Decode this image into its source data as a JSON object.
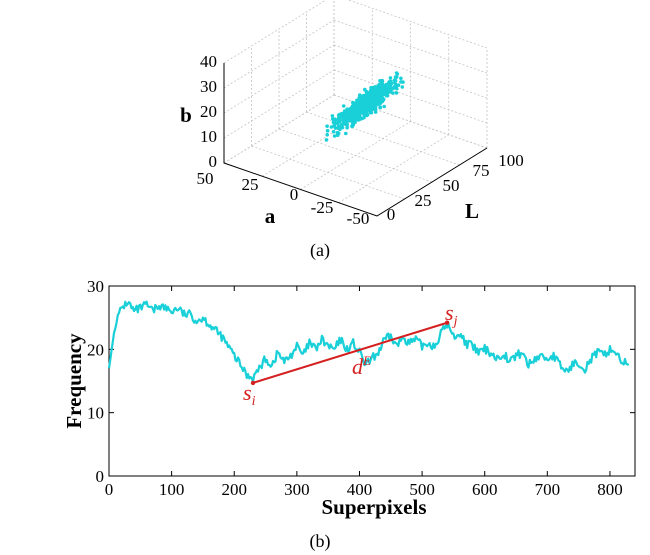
{
  "panel_a": {
    "caption": "(a)",
    "axis_labels": {
      "b": "b",
      "a": "a",
      "L": "L"
    },
    "b_ticks": [
      "0",
      "10",
      "20",
      "30",
      "40"
    ],
    "a_ticks": [
      "50",
      "25",
      "0",
      "-25",
      "-50"
    ],
    "L_ticks": [
      "0",
      "25",
      "50",
      "75",
      "100"
    ],
    "point_color": "#1ad0d8"
  },
  "panel_b": {
    "caption": "(b)",
    "ylabel": "Frequency",
    "xlabel": "Superpixels",
    "x_ticks": [
      "0",
      "100",
      "200",
      "300",
      "400",
      "500",
      "600",
      "700",
      "800"
    ],
    "y_ticks": [
      "0",
      "10",
      "20",
      "30"
    ],
    "annotations": {
      "si_base": "s",
      "si_sub": "i",
      "sj_base": "s",
      "sj_sub": "j",
      "d_base": "d",
      "d_sup": "E"
    },
    "line_color": "#1ad0d8",
    "segment_color": "#d42020"
  },
  "chart_data": [
    {
      "type": "scatter",
      "xlabel": "a",
      "ylabel": "b",
      "zlabel": "L",
      "xlim": [
        -50,
        50
      ],
      "ylim": [
        0,
        40
      ],
      "zlim": [
        0,
        100
      ],
      "grid": true,
      "series": [
        {
          "points_summary": "dense cluster, approx L 30-75, a -20 to 10, b 10-33"
        }
      ]
    },
    {
      "type": "line",
      "xlabel": "Superpixels",
      "ylabel": "Frequency",
      "xlim": [
        0,
        840
      ],
      "ylim": [
        0,
        30
      ],
      "grid": false,
      "x": [
        0,
        10,
        20,
        30,
        40,
        50,
        60,
        70,
        80,
        90,
        100,
        110,
        120,
        130,
        140,
        150,
        160,
        170,
        180,
        190,
        200,
        210,
        220,
        230,
        240,
        250,
        260,
        270,
        280,
        290,
        300,
        310,
        320,
        330,
        340,
        350,
        360,
        370,
        380,
        390,
        400,
        410,
        420,
        430,
        440,
        450,
        460,
        470,
        480,
        490,
        500,
        510,
        520,
        530,
        540,
        550,
        560,
        570,
        580,
        590,
        600,
        610,
        620,
        630,
        640,
        650,
        660,
        670,
        680,
        690,
        700,
        710,
        720,
        730,
        740,
        750,
        760,
        770,
        780,
        790,
        800,
        810,
        820,
        830
      ],
      "y": [
        17,
        24,
        26.5,
        27.5,
        26,
        26.5,
        27,
        26,
        27,
        26.5,
        26,
        26.5,
        25.5,
        25.5,
        24.5,
        25,
        24,
        23,
        22,
        20.5,
        19,
        17.5,
        16,
        15.5,
        17,
        18.5,
        17.5,
        19.5,
        18,
        19,
        20.5,
        19,
        21,
        20,
        21.5,
        20.5,
        20,
        21.5,
        20,
        21,
        19.5,
        17.5,
        18.5,
        19.5,
        21.5,
        22,
        20.5,
        22,
        21,
        21.5,
        20.5,
        21,
        20.5,
        22.5,
        24,
        22,
        22.5,
        21,
        20.5,
        19.5,
        20,
        19.5,
        18.5,
        19.5,
        18,
        19,
        19.5,
        17.5,
        18.5,
        19,
        18.5,
        19,
        17.5,
        16.5,
        17.5,
        18,
        17,
        18.5,
        19.5,
        19,
        20,
        19.5,
        18,
        17.5
      ],
      "annotation_segment": {
        "from": [
          230,
          14.7
        ],
        "to": [
          540,
          24.2
        ]
      }
    }
  ]
}
